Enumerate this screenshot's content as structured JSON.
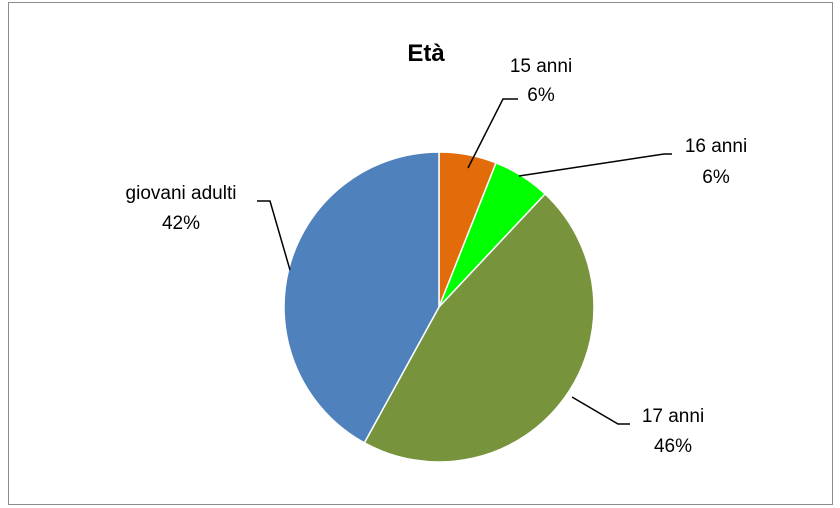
{
  "chart_data": {
    "type": "pie",
    "title": "Età",
    "slices": [
      {
        "name": "15 anni",
        "value": 6,
        "label": "6%",
        "color": "#E36C0A"
      },
      {
        "name": "16 anni",
        "value": 6,
        "label": "6%",
        "color": "#00FF00"
      },
      {
        "name": "17 anni",
        "value": 46,
        "label": "46%",
        "color": "#77933C"
      },
      {
        "name": "giovani adulti",
        "value": 42,
        "label": "42%",
        "color": "#4F81BD"
      }
    ],
    "legend": "none"
  }
}
